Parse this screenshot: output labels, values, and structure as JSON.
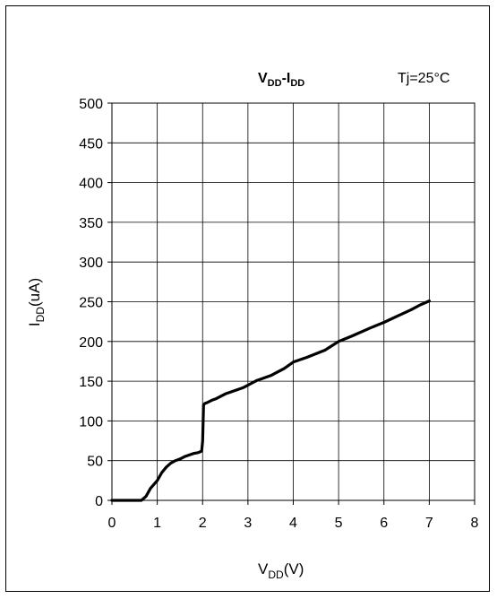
{
  "chart_data": {
    "type": "line",
    "title": {
      "main": "V",
      "main_sub": "DD",
      "sep": "-",
      "main2": "I",
      "main2_sub": "DD"
    },
    "annotation": "Tj=25°C",
    "xlabel": {
      "main": "V",
      "sub": "DD",
      "unit": "(V)"
    },
    "ylabel": {
      "main": "I",
      "sub": "DD",
      "unit": "(uA)"
    },
    "xlim": [
      0,
      8
    ],
    "ylim": [
      0,
      500
    ],
    "xticks": [
      "0",
      "1",
      "2",
      "3",
      "4",
      "5",
      "6",
      "7",
      "8"
    ],
    "yticks": [
      "0",
      "50",
      "100",
      "150",
      "200",
      "250",
      "300",
      "350",
      "400",
      "450",
      "500"
    ],
    "grid": true,
    "line_color": "#000000",
    "series": [
      {
        "x": [
          0,
          0.65,
          0.75,
          0.85,
          1.0,
          1.1,
          1.2,
          1.3,
          1.4,
          1.5,
          1.6,
          1.7,
          1.8,
          1.9,
          1.98,
          2.0,
          2.02,
          2.05,
          2.1,
          2.2,
          2.3,
          2.4,
          2.5,
          2.7,
          2.9,
          3.0,
          3.2,
          3.5,
          3.8,
          4.0,
          4.3,
          4.7,
          5.0,
          5.3,
          5.7,
          6.0,
          6.3,
          6.6,
          6.8,
          7.0
        ],
        "y": [
          0,
          0,
          5,
          15,
          25,
          35,
          42,
          47,
          50,
          52,
          55,
          57,
          59,
          60,
          62,
          75,
          120,
          122,
          123,
          126,
          128,
          131,
          134,
          138,
          142,
          145,
          151,
          157,
          166,
          174,
          180,
          189,
          200,
          207,
          217,
          224,
          232,
          240,
          246,
          251
        ]
      }
    ]
  }
}
